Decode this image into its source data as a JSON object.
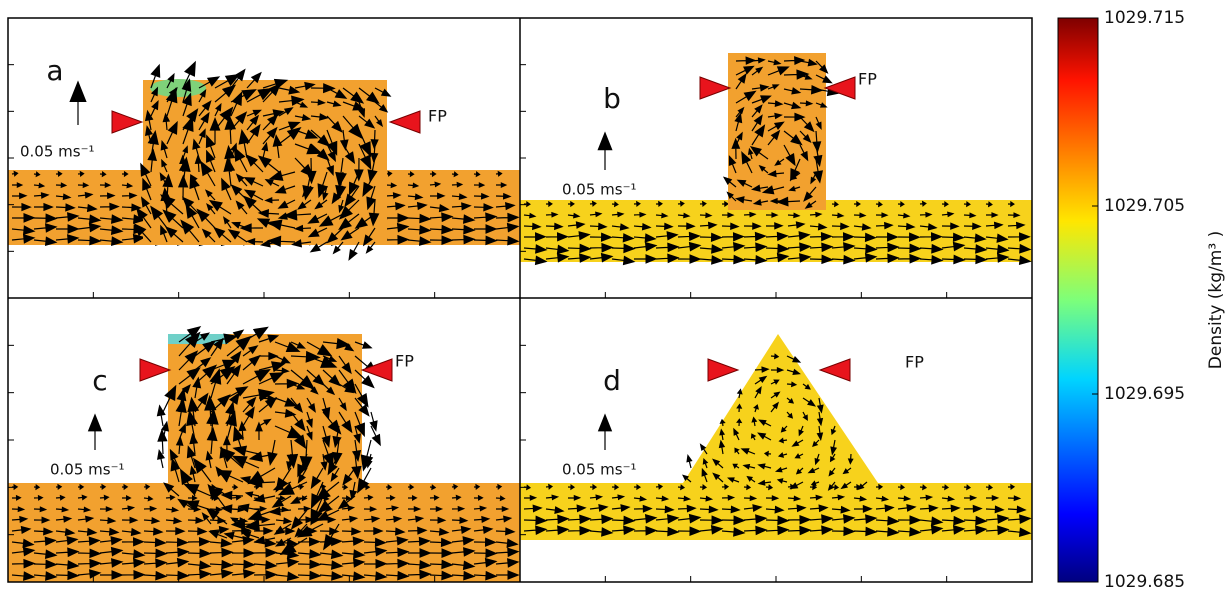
{
  "panels": [
    {
      "label": "a",
      "scale_label": "0.05 ms⁻¹",
      "marker_label": "FP"
    },
    {
      "label": "b",
      "scale_label": "0.05 ms⁻¹",
      "marker_label": "FP"
    },
    {
      "label": "c",
      "scale_label": "0.05 ms⁻¹",
      "marker_label": "FP"
    },
    {
      "label": "d",
      "scale_label": "0.05 ms⁻¹",
      "marker_label": "FP"
    }
  ],
  "colorbar": {
    "label": "Density (kg/m³ )",
    "lim": [
      1029.685,
      1029.715
    ],
    "ticks": [
      1029.685,
      1029.695,
      1029.705,
      1029.715
    ]
  }
}
